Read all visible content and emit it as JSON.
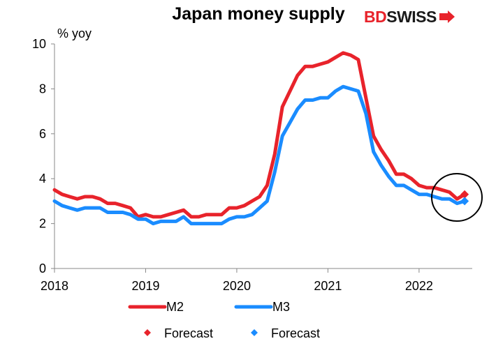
{
  "chart_data": {
    "type": "line",
    "title": "Japan money supply",
    "ylabel": "% yoy",
    "xlabel": "",
    "ylim": [
      0,
      10
    ],
    "yticks": [
      0,
      2,
      4,
      6,
      8,
      10
    ],
    "xlim": [
      "2018-01",
      "2022-08"
    ],
    "xticks": [
      "2018",
      "2019",
      "2020",
      "2021",
      "2022"
    ],
    "grid": false,
    "legend_position": "bottom",
    "series": [
      {
        "name": "M2",
        "color": "#e8232b",
        "start": "2018-01",
        "values": [
          3.5,
          3.3,
          3.2,
          3.1,
          3.2,
          3.2,
          3.1,
          2.9,
          2.9,
          2.8,
          2.7,
          2.3,
          2.4,
          2.3,
          2.3,
          2.4,
          2.5,
          2.6,
          2.3,
          2.3,
          2.4,
          2.4,
          2.4,
          2.7,
          2.7,
          2.8,
          3.0,
          3.2,
          3.7,
          5.1,
          7.2,
          7.9,
          8.6,
          9.0,
          9.0,
          9.1,
          9.2,
          9.4,
          9.6,
          9.5,
          9.3,
          7.6,
          5.9,
          5.3,
          4.8,
          4.2,
          4.2,
          4.0,
          3.7,
          3.6,
          3.6,
          3.5,
          3.4,
          3.1,
          3.3
        ]
      },
      {
        "name": "M3",
        "color": "#1a8cff",
        "start": "2018-01",
        "values": [
          3.0,
          2.8,
          2.7,
          2.6,
          2.7,
          2.7,
          2.7,
          2.5,
          2.5,
          2.5,
          2.4,
          2.2,
          2.2,
          2.0,
          2.1,
          2.1,
          2.1,
          2.3,
          2.0,
          2.0,
          2.0,
          2.0,
          2.0,
          2.2,
          2.3,
          2.3,
          2.4,
          2.7,
          3.0,
          4.3,
          5.9,
          6.5,
          7.1,
          7.5,
          7.5,
          7.6,
          7.6,
          7.9,
          8.1,
          8.0,
          7.9,
          6.9,
          5.2,
          4.6,
          4.1,
          3.7,
          3.7,
          3.5,
          3.3,
          3.3,
          3.2,
          3.1,
          3.1,
          2.9,
          3.0
        ]
      },
      {
        "name": "Forecast",
        "color": "#e8232b",
        "marker": "diamond",
        "x": [
          "2022-07"
        ],
        "values": [
          3.3
        ]
      },
      {
        "name": "Forecast",
        "color": "#1a8cff",
        "marker": "diamond",
        "x": [
          "2022-07"
        ],
        "values": [
          3.0
        ]
      }
    ],
    "annotations": [
      "circle around latest data and forecasts"
    ]
  },
  "logo": {
    "text_a": "BD",
    "text_b": "SWISS",
    "color_a": "#e8232b",
    "color_b": "#1a1a1a"
  }
}
